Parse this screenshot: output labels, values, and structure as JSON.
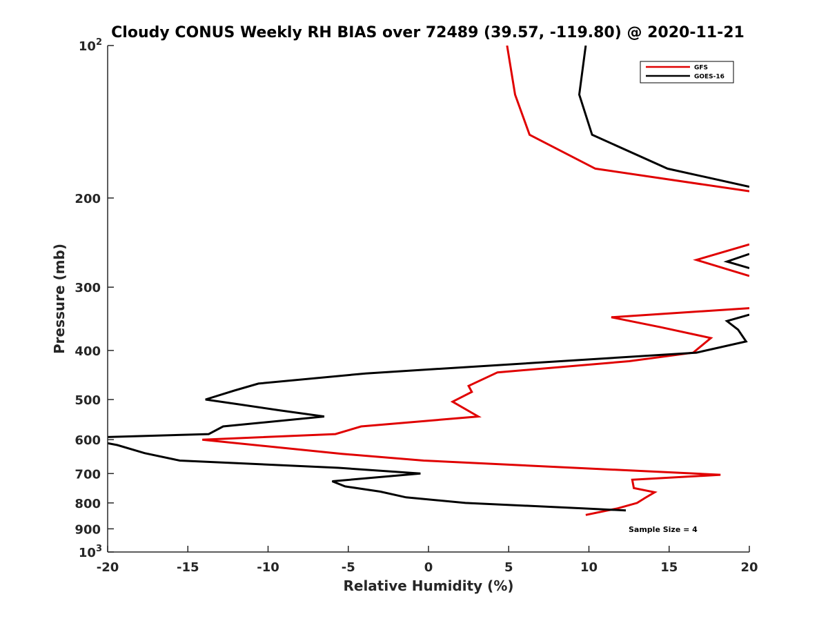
{
  "chart_data": {
    "type": "line",
    "title": "Cloudy CONUS Weekly RH BIAS over 72489 (39.57, -119.80) @ 2020-11-21",
    "xlabel": "Relative Humidity (%)",
    "ylabel": "Pressure (mb)",
    "xlim": [
      -20,
      20
    ],
    "ylim": [
      100,
      1000
    ],
    "y_scale": "log",
    "y_reversed": true,
    "grid": false,
    "legend_position": "top-right",
    "x_ticks": [
      "-20",
      "-15",
      "-10",
      "-5",
      "0",
      "5",
      "10",
      "15",
      "20"
    ],
    "y_ticks": [
      {
        "value": 100,
        "base": "10",
        "exp": "2"
      },
      {
        "value": 200,
        "label": "200"
      },
      {
        "value": 300,
        "label": "300"
      },
      {
        "value": 400,
        "label": "400"
      },
      {
        "value": 500,
        "label": "500"
      },
      {
        "value": 600,
        "label": "600"
      },
      {
        "value": 700,
        "label": "700"
      },
      {
        "value": 800,
        "label": "800"
      },
      {
        "value": 900,
        "label": "900"
      },
      {
        "value": 1000,
        "base": "10",
        "exp": "3"
      }
    ],
    "series": [
      {
        "name": "GFS",
        "color": "#e00000",
        "segments": [
          [
            [
              4.9,
              100
            ],
            [
              5.4,
              125
            ],
            [
              6.3,
              150
            ],
            [
              10.4,
              175
            ],
            [
              20.0,
              194
            ]
          ],
          [
            [
              20.0,
              247
            ],
            [
              16.7,
              265
            ],
            [
              20.0,
              285
            ]
          ],
          [
            [
              20.0,
              330
            ],
            [
              11.4,
              344
            ],
            [
              14.5,
              360
            ],
            [
              17.6,
              378
            ],
            [
              16.5,
              404
            ],
            [
              12.5,
              420
            ],
            [
              4.3,
              442
            ],
            [
              2.5,
              470
            ],
            [
              2.7,
              483
            ],
            [
              1.5,
              505
            ],
            [
              3.1,
              540
            ],
            [
              -4.2,
              565
            ],
            [
              -5.8,
              585
            ],
            [
              -14.1,
              600
            ],
            [
              -5.4,
              640
            ],
            [
              -0.3,
              660
            ],
            [
              18.2,
              704
            ],
            [
              12.7,
              720
            ],
            [
              12.8,
              748
            ],
            [
              14.1,
              762
            ],
            [
              13.5,
              782
            ],
            [
              13.0,
              800
            ],
            [
              11.8,
              820
            ],
            [
              9.8,
              845
            ]
          ]
        ]
      },
      {
        "name": "GOES-16",
        "color": "#000000",
        "segments": [
          [
            [
              9.8,
              100
            ],
            [
              9.4,
              125
            ],
            [
              10.2,
              150
            ],
            [
              14.9,
              175
            ],
            [
              20.0,
              190
            ]
          ],
          [
            [
              20.0,
              258
            ],
            [
              18.6,
              267
            ],
            [
              20.0,
              275
            ]
          ],
          [
            [
              20.0,
              340
            ],
            [
              18.6,
              350
            ],
            [
              19.3,
              364
            ],
            [
              19.8,
              384
            ],
            [
              16.7,
              404
            ],
            [
              -3.9,
              444
            ],
            [
              -10.6,
              465
            ],
            [
              -12.1,
              480
            ],
            [
              -13.9,
              500
            ],
            [
              -12.0,
              510
            ],
            [
              -9.3,
              525
            ],
            [
              -6.5,
              540
            ],
            [
              -12.8,
              565
            ],
            [
              -13.7,
              585
            ],
            [
              -20.0,
              593
            ]
          ],
          [
            [
              -20.0,
              610
            ],
            [
              -19.4,
              615
            ],
            [
              -17.7,
              638
            ],
            [
              -15.5,
              660
            ],
            [
              -5.6,
              682
            ],
            [
              -0.5,
              700
            ],
            [
              -6.0,
              725
            ],
            [
              -5.2,
              742
            ],
            [
              -3.0,
              760
            ],
            [
              -1.4,
              780
            ],
            [
              2.3,
              800
            ],
            [
              9.6,
              820
            ],
            [
              12.3,
              828
            ]
          ]
        ]
      }
    ],
    "legend": [
      {
        "name": "GFS",
        "color": "#e00000"
      },
      {
        "name": "GOES-16",
        "color": "#000000"
      }
    ],
    "annotation": "Sample Size = 4"
  }
}
